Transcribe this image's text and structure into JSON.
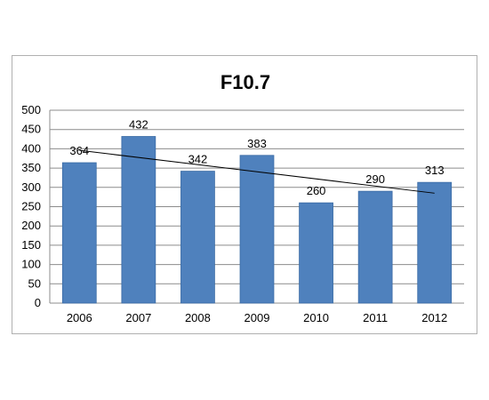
{
  "chart_data": {
    "type": "bar",
    "title": "F10.7",
    "categories": [
      "2006",
      "2007",
      "2008",
      "2009",
      "2010",
      "2011",
      "2012"
    ],
    "values": [
      364,
      432,
      342,
      383,
      260,
      290,
      313
    ],
    "data_labels": [
      "364",
      "432",
      "342",
      "383",
      "260",
      "290",
      "313"
    ],
    "ylim": [
      0,
      500
    ],
    "yticks": [
      "0",
      "50",
      "100",
      "150",
      "200",
      "250",
      "300",
      "350",
      "400",
      "450",
      "500"
    ],
    "grid": true,
    "legend": "none",
    "trendline": {
      "type": "linear",
      "start": 396,
      "end": 285
    },
    "colors": {
      "bar": "#4F81BD",
      "bar_edge": "#3A6BA5",
      "grid": "#8c8c8c",
      "trend": "#000000"
    }
  }
}
